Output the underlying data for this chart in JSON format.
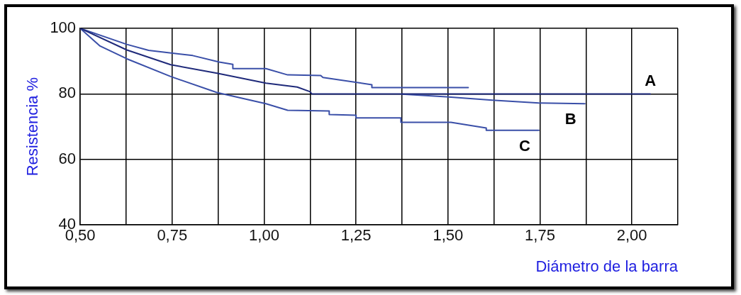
{
  "chart_data": {
    "type": "line",
    "xlabel": "Diámetro de la barra",
    "ylabel": "Resistencia %",
    "xlim": [
      0.5,
      2.125
    ],
    "ylim": [
      40,
      100
    ],
    "xticks": [
      {
        "value": 0.5,
        "label": "0,50"
      },
      {
        "value": 0.625,
        "label": null
      },
      {
        "value": 0.75,
        "label": "0,75"
      },
      {
        "value": 0.875,
        "label": null
      },
      {
        "value": 1.0,
        "label": "1,00"
      },
      {
        "value": 1.125,
        "label": null
      },
      {
        "value": 1.25,
        "label": "1,25"
      },
      {
        "value": 1.375,
        "label": null
      },
      {
        "value": 1.5,
        "label": "1,50"
      },
      {
        "value": 1.625,
        "label": null
      },
      {
        "value": 1.75,
        "label": "1,75"
      },
      {
        "value": 1.875,
        "label": null
      },
      {
        "value": 2.0,
        "label": "2,00"
      },
      {
        "value": 2.125,
        "label": null
      }
    ],
    "yticks": [
      40,
      60,
      80,
      100
    ],
    "grid": true,
    "legend": false,
    "marker": "none",
    "line_style": "solid",
    "series": [
      {
        "name": "A",
        "color": "#1f2a7a",
        "x": [
          0.5,
          0.627,
          0.746,
          0.872,
          1.005,
          1.09,
          1.124,
          1.13,
          2.05
        ],
        "values": [
          100,
          93.4,
          88.9,
          86.3,
          83.3,
          82.1,
          80.7,
          80,
          80
        ]
      },
      {
        "name": "B",
        "color": "#3a4fa8",
        "x": [
          1.375,
          1.495,
          1.62,
          1.747,
          1.872
        ],
        "values": [
          79.9,
          79.1,
          78.1,
          77.2,
          77.0
        ]
      },
      {
        "name": "C",
        "color": "#3a4fa8",
        "x": [
          0.5,
          0.554,
          0.627,
          0.746,
          0.872,
          1.005,
          1.064,
          1.177,
          1.177,
          1.25,
          1.25,
          1.372,
          1.372,
          1.508,
          1.604,
          1.604,
          1.747
        ],
        "values": [
          100,
          94.6,
          90.7,
          85.3,
          80.4,
          77.0,
          75.0,
          74.8,
          73.7,
          73.5,
          72.7,
          72.7,
          71.3,
          71.3,
          69.6,
          68.9,
          68.9
        ]
      },
      {
        "color": "#3a4fa8",
        "x": [
          0.5,
          0.627,
          0.686,
          0.806,
          0.878,
          0.915,
          0.915,
          1.005,
          1.064,
          1.154,
          1.16,
          1.293,
          1.293,
          1.555
        ],
        "values": [
          100,
          95.1,
          93.3,
          91.7,
          89.7,
          89.0,
          87.7,
          87.7,
          85.8,
          85.6,
          85.0,
          82.8,
          81.9,
          81.9
        ]
      }
    ]
  }
}
